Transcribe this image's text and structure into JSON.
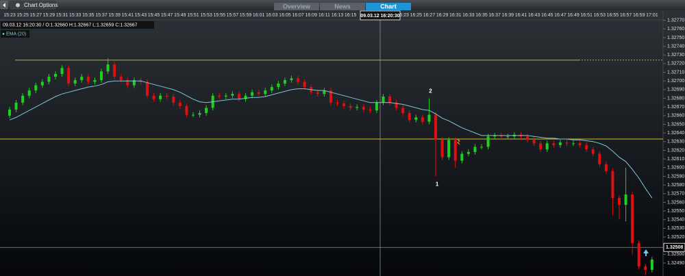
{
  "ui": {
    "chart_options": "Chart Options",
    "tabs": [
      "Overview",
      "News",
      "Chart"
    ],
    "info": "09.03.12 16:20:30 / O:1.32660  H:1.32667  L:1.32659  C:1.32667",
    "crosshair_label": "09.03.12 16:20:30"
  },
  "chart_data": {
    "type": "candlestick",
    "categories": [
      "15:23",
      null,
      "15:25",
      null,
      "15:27",
      null,
      "15:29",
      null,
      "15:31",
      null,
      "15:33",
      null,
      "15:35",
      null,
      "15:37",
      null,
      "15:39",
      null,
      "15:41",
      null,
      "15:43",
      null,
      "15:45",
      null,
      "15:47",
      null,
      "15:49",
      null,
      "15:51",
      null,
      "15:53",
      null,
      "15:55",
      null,
      "15:57",
      null,
      "15:59",
      null,
      "16:01",
      null,
      "16:03",
      null,
      "16:05",
      null,
      "16:07",
      null,
      "16:09",
      null,
      "16:11",
      null,
      "16:13",
      null,
      "16:15",
      null,
      null,
      null,
      null,
      null,
      null,
      null,
      "16:23",
      null,
      "16:25",
      null,
      "16:27",
      null,
      "16:29",
      null,
      "16:31",
      null,
      "16:33",
      null,
      "16:35",
      null,
      "16:37",
      null,
      "16:39",
      null,
      "16:41",
      null,
      "16:43",
      null,
      "16:45",
      null,
      "16:47",
      null,
      "16:49",
      null,
      "16:51",
      null,
      "16:53",
      null,
      "16:55",
      null,
      "16:57",
      null,
      "16:59",
      null,
      "17:01"
    ],
    "open": [
      1.3266,
      1.32667,
      1.32675,
      1.32683,
      1.32689,
      1.32695,
      1.32699,
      1.32705,
      1.32708,
      1.32715,
      1.32697,
      1.32701,
      1.32705,
      1.32699,
      1.32701,
      1.32711,
      1.32719,
      1.32705,
      1.32701,
      1.32695,
      1.32701,
      1.32699,
      1.32683,
      1.32679,
      1.32683,
      1.32682,
      1.32675,
      1.32671,
      1.32661,
      1.32661,
      1.32663,
      1.32669,
      1.32683,
      1.32682,
      1.32683,
      1.32685,
      1.32679,
      1.32683,
      1.32687,
      1.32685,
      1.32689,
      1.32693,
      1.32697,
      1.32701,
      1.32703,
      1.32699,
      1.32693,
      1.32687,
      1.32685,
      1.32689,
      1.32675,
      1.32674,
      1.32671,
      1.32669,
      1.3267,
      1.32667,
      1.32666,
      1.32675,
      1.32682,
      1.32675,
      1.32669,
      1.32663,
      1.32655,
      1.32658,
      1.32653,
      1.32661,
      1.32632,
      1.32612,
      1.32632,
      1.32608,
      1.32616,
      1.32618,
      1.32624,
      1.32624,
      1.32636,
      1.32637,
      1.32636,
      1.32636,
      1.32638,
      1.32636,
      1.32632,
      1.32628,
      1.32621,
      1.32628,
      1.32626,
      1.32629,
      1.32628,
      1.32628,
      1.32626,
      1.32621,
      1.32616,
      1.32604,
      1.32596,
      1.32565,
      1.32557,
      1.32569,
      1.32513,
      1.32486,
      1.32482
    ],
    "close": [
      1.32667,
      1.32675,
      1.32683,
      1.32689,
      1.32695,
      1.32699,
      1.32705,
      1.32708,
      1.32715,
      1.32697,
      1.32701,
      1.32705,
      1.32699,
      1.32701,
      1.32711,
      1.32719,
      1.32705,
      1.32701,
      1.32695,
      1.32701,
      1.32699,
      1.32683,
      1.32679,
      1.32683,
      1.32682,
      1.32675,
      1.32671,
      1.32661,
      1.32661,
      1.32663,
      1.32669,
      1.32683,
      1.32682,
      1.32683,
      1.32685,
      1.32679,
      1.32683,
      1.32687,
      1.32685,
      1.32689,
      1.32693,
      1.32697,
      1.32701,
      1.32703,
      1.32699,
      1.32693,
      1.32687,
      1.32685,
      1.32689,
      1.32675,
      1.32674,
      1.32671,
      1.32669,
      1.3267,
      1.32667,
      1.32666,
      1.32675,
      1.32682,
      1.32675,
      1.32669,
      1.32663,
      1.32655,
      1.32658,
      1.32653,
      1.32661,
      1.32632,
      1.32612,
      1.32632,
      1.32608,
      1.32616,
      1.32618,
      1.32624,
      1.32624,
      1.32636,
      1.32637,
      1.32636,
      1.32636,
      1.32638,
      1.32636,
      1.32632,
      1.32628,
      1.32621,
      1.32628,
      1.32626,
      1.32629,
      1.32628,
      1.32628,
      1.32626,
      1.32621,
      1.32616,
      1.32604,
      1.32596,
      1.32565,
      1.32557,
      1.32569,
      1.32513,
      1.32486,
      1.32482,
      1.32494
    ],
    "high": [
      1.3267,
      1.32678,
      1.32686,
      1.32692,
      1.32698,
      1.32702,
      1.32708,
      1.32711,
      1.32718,
      1.32718,
      1.32704,
      1.32708,
      1.32708,
      1.32704,
      1.32714,
      1.32726,
      1.32722,
      1.32708,
      1.32704,
      1.32704,
      1.32704,
      1.32702,
      1.32686,
      1.32686,
      1.32686,
      1.32685,
      1.32678,
      1.32674,
      1.32664,
      1.32666,
      1.32672,
      1.32686,
      1.32686,
      1.32686,
      1.32688,
      1.32688,
      1.32686,
      1.3269,
      1.3269,
      1.32692,
      1.32696,
      1.327,
      1.32704,
      1.32706,
      1.32706,
      1.32702,
      1.32696,
      1.3269,
      1.32692,
      1.32692,
      1.32678,
      1.32677,
      1.32674,
      1.32673,
      1.32673,
      1.3267,
      1.32678,
      1.32685,
      1.32685,
      1.32678,
      1.32672,
      1.32666,
      1.32661,
      1.32661,
      1.3268,
      1.32664,
      1.32635,
      1.32635,
      1.32635,
      1.32619,
      1.32621,
      1.32627,
      1.32627,
      1.32639,
      1.3264,
      1.3264,
      1.32639,
      1.32641,
      1.32641,
      1.32639,
      1.32635,
      1.32631,
      1.32631,
      1.32631,
      1.32632,
      1.32632,
      1.32631,
      1.32631,
      1.32629,
      1.32624,
      1.32619,
      1.32607,
      1.32599,
      1.32568,
      1.326,
      1.32572,
      1.32516,
      1.32489,
      1.32497
    ],
    "low": [
      1.32657,
      1.32664,
      1.32672,
      1.3268,
      1.32686,
      1.32692,
      1.32696,
      1.32702,
      1.32705,
      1.32694,
      1.32694,
      1.32698,
      1.32696,
      1.32696,
      1.32698,
      1.32708,
      1.32702,
      1.32698,
      1.32692,
      1.32692,
      1.32696,
      1.3268,
      1.32676,
      1.32676,
      1.32679,
      1.32672,
      1.32668,
      1.32658,
      1.32658,
      1.32658,
      1.3266,
      1.32666,
      1.32679,
      1.32679,
      1.3268,
      1.32676,
      1.32676,
      1.3268,
      1.32682,
      1.32682,
      1.32686,
      1.3269,
      1.32694,
      1.32698,
      1.32696,
      1.3269,
      1.32684,
      1.32682,
      1.32682,
      1.32672,
      1.32671,
      1.32668,
      1.32666,
      1.32666,
      1.32664,
      1.32663,
      1.32663,
      1.32672,
      1.32672,
      1.32666,
      1.3266,
      1.32652,
      1.32652,
      1.3265,
      1.3265,
      1.3259,
      1.32609,
      1.32609,
      1.326,
      1.32605,
      1.32613,
      1.32615,
      1.32621,
      1.32621,
      1.32633,
      1.32633,
      1.32633,
      1.32633,
      1.32633,
      1.32629,
      1.32625,
      1.32618,
      1.32618,
      1.32623,
      1.32623,
      1.32625,
      1.32625,
      1.32623,
      1.32618,
      1.32613,
      1.32601,
      1.32593,
      1.32545,
      1.3254,
      1.32538,
      1.325,
      1.32483,
      1.32476,
      1.32479
    ],
    "up_color": "#1fd11f",
    "down_color": "#e01010",
    "series": [
      {
        "name": "EMA (20)",
        "color": "#7fc6d8",
        "values": [
          1.32655,
          1.32658,
          1.32662,
          1.32666,
          1.3267,
          1.32674,
          1.32678,
          1.32682,
          1.32685,
          1.32687,
          1.32689,
          1.32691,
          1.32693,
          1.32694,
          1.32696,
          1.32699,
          1.327,
          1.327,
          1.327,
          1.327,
          1.327,
          1.32698,
          1.32696,
          1.32694,
          1.32692,
          1.3269,
          1.32687,
          1.32683,
          1.32679,
          1.32676,
          1.32675,
          1.32676,
          1.32677,
          1.32678,
          1.32679,
          1.32679,
          1.3268,
          1.32681,
          1.32681,
          1.32682,
          1.32684,
          1.32686,
          1.32688,
          1.3269,
          1.32691,
          1.32691,
          1.3269,
          1.32689,
          1.32689,
          1.32687,
          1.32685,
          1.32683,
          1.32681,
          1.32679,
          1.32677,
          1.32675,
          1.32675,
          1.32675,
          1.32675,
          1.32674,
          1.32673,
          1.32671,
          1.32669,
          1.32667,
          1.32666,
          1.32662,
          1.32657,
          1.32654,
          1.3265,
          1.32646,
          1.32643,
          1.3264,
          1.32637,
          1.32637,
          1.32637,
          1.32637,
          1.32637,
          1.32637,
          1.32637,
          1.32637,
          1.32636,
          1.32635,
          1.32634,
          1.32634,
          1.32633,
          1.32633,
          1.32632,
          1.32632,
          1.32631,
          1.3263,
          1.32628,
          1.32625,
          1.32619,
          1.32612,
          1.32607,
          1.32598,
          1.32588,
          1.32576,
          1.32565
        ]
      }
    ],
    "hlines": [
      1.32724,
      1.32633
    ],
    "hline_color": "#d4c21a",
    "price_line": {
      "value": 1.32508,
      "label": "1.32508"
    },
    "annotations": [
      "1",
      "2"
    ],
    "ylim": [
      1.32475,
      1.32776
    ],
    "yticks": [
      {
        "value": 1.3277,
        "label": "1.32770"
      },
      {
        "value": 1.3276,
        "label": "1.32760"
      },
      {
        "value": 1.3275,
        "label": "1.32750"
      },
      {
        "value": 1.3274,
        "label": "1.32740"
      },
      {
        "value": 1.3273,
        "label": "1.32730"
      },
      {
        "value": 1.3272,
        "label": "1.32720"
      },
      {
        "value": 1.3271,
        "label": "1.32710"
      },
      {
        "value": 1.327,
        "label": "1.32700"
      },
      {
        "value": 1.3269,
        "label": "1.32690"
      },
      {
        "value": 1.3268,
        "label": "1.32680"
      },
      {
        "value": 1.3267,
        "label": "1.32670"
      },
      {
        "value": 1.3266,
        "label": "1.32660"
      },
      {
        "value": 1.3265,
        "label": "1.32650"
      },
      {
        "value": 1.3264,
        "label": "1.32640"
      },
      {
        "value": 1.3263,
        "label": "1.32630"
      },
      {
        "value": 1.3262,
        "label": "1.32620"
      },
      {
        "value": 1.3261,
        "label": "1.32610"
      },
      {
        "value": 1.326,
        "label": "1.32600"
      },
      {
        "value": 1.3259,
        "label": "1.32590"
      },
      {
        "value": 1.3258,
        "label": "1.32580"
      },
      {
        "value": 1.3257,
        "label": "1.32570"
      },
      {
        "value": 1.3256,
        "label": "1.32560"
      },
      {
        "value": 1.3255,
        "label": "1.32550"
      },
      {
        "value": 1.3254,
        "label": "1.32540"
      },
      {
        "value": 1.3253,
        "label": "1.32530"
      },
      {
        "value": 1.3252,
        "label": "1.32520"
      },
      {
        "value": 1.325,
        "label": "1.32500"
      },
      {
        "value": 1.3249,
        "label": "1.32490"
      }
    ]
  }
}
